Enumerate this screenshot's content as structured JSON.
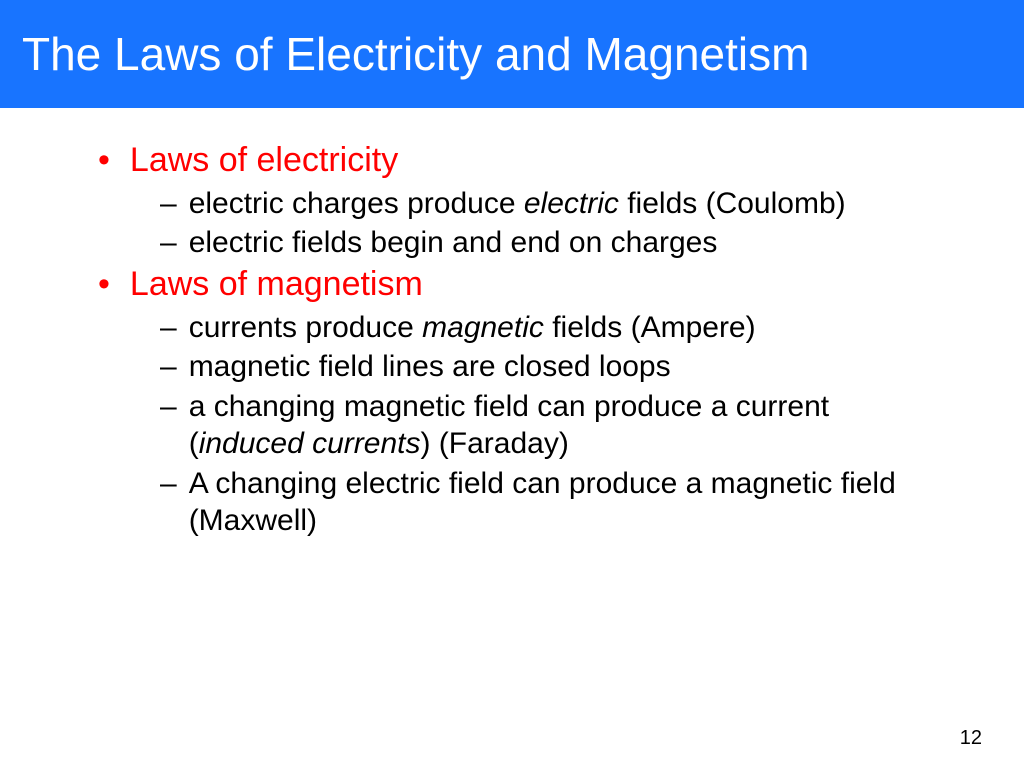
{
  "slide": {
    "title": "The Laws of Electricity and Magnetism",
    "title_bar_color": "#1874ff",
    "title_text_color": "#ffffff",
    "title_fontsize": 46,
    "background_color": "#ffffff",
    "page_number": "12",
    "bullets": [
      {
        "text": "Laws of electricity",
        "color": "#ff0000",
        "fontsize": 34,
        "subitems": [
          {
            "parts": [
              {
                "text": "electric charges produce ",
                "italic": false
              },
              {
                "text": "electric",
                "italic": true
              },
              {
                "text": " fields (Coulomb)",
                "italic": false
              }
            ]
          },
          {
            "parts": [
              {
                "text": "electric fields begin and end on charges",
                "italic": false
              }
            ]
          }
        ]
      },
      {
        "text": "Laws of magnetism",
        "color": "#ff0000",
        "fontsize": 34,
        "subitems": [
          {
            "parts": [
              {
                "text": "currents produce ",
                "italic": false
              },
              {
                "text": "magnetic",
                "italic": true
              },
              {
                "text": " fields (Ampere)",
                "italic": false
              }
            ]
          },
          {
            "parts": [
              {
                "text": "magnetic field lines are closed loops",
                "italic": false
              }
            ]
          },
          {
            "parts": [
              {
                "text": "a changing magnetic field can produce a current (",
                "italic": false
              },
              {
                "text": "induced currents",
                "italic": true
              },
              {
                "text": ") (Faraday)",
                "italic": false
              }
            ]
          },
          {
            "parts": [
              {
                "text": "A changing electric field can produce a magnetic field (Maxwell)",
                "italic": false
              }
            ]
          }
        ]
      }
    ],
    "sub_color": "#000000",
    "sub_fontsize": 30
  }
}
